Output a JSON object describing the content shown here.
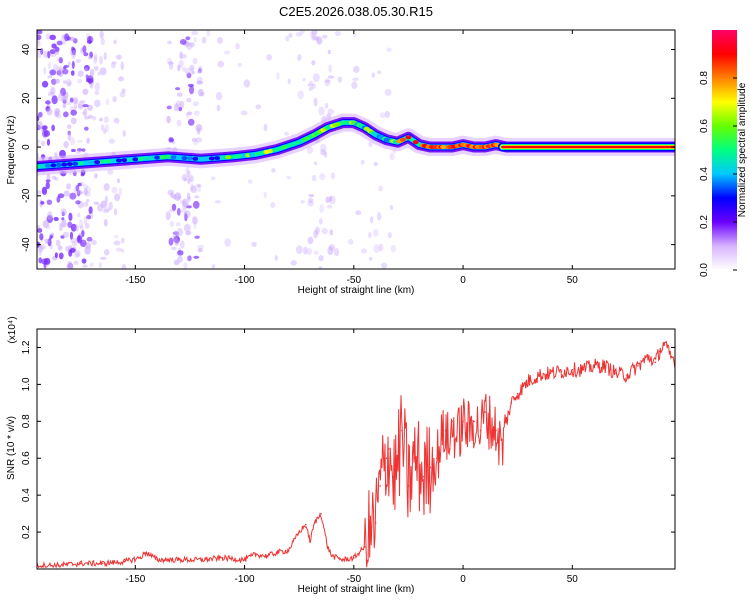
{
  "figure_title": "C2E5.2026.038.05.30.R15",
  "chart_data": [
    {
      "type": "heatmap",
      "title": "C2E5.2026.038.05.30.R15",
      "xlabel": "Height of straight line (km)",
      "ylabel": "Frequency (Hz)",
      "xlim": [
        -195,
        97
      ],
      "ylim": [
        -50,
        48
      ],
      "xticks": [
        -150,
        -100,
        -50,
        0,
        50
      ],
      "xtick_labels": [
        "-150",
        "-100",
        "-50",
        "0",
        "50"
      ],
      "yticks": [
        -40,
        -20,
        0,
        20,
        40
      ],
      "ytick_labels": [
        "-40",
        "-20",
        "0",
        "20",
        "40"
      ],
      "colorbar": {
        "label": "Normalized spectral amplitude",
        "range": [
          0,
          1
        ],
        "ticks": [
          0,
          0.2,
          0.4,
          0.6,
          0.8
        ],
        "tick_labels": [
          "0.0",
          "0.2",
          "0.4",
          "0.6",
          "0.8"
        ],
        "colormap": [
          "#ffffff",
          "#d8b4ff",
          "#6a00ff",
          "#0000ff",
          "#00c8ff",
          "#00ff80",
          "#66ff00",
          "#ffff00",
          "#ff8000",
          "#ff0000",
          "#ff0066"
        ]
      },
      "ridge_frequency_hz": {
        "x": [
          -195,
          -180,
          -165,
          -150,
          -135,
          -120,
          -105,
          -95,
          -85,
          -75,
          -68,
          -62,
          -55,
          -50,
          -45,
          -40,
          -35,
          -30,
          -25,
          -20,
          -15,
          -10,
          -5,
          0,
          5,
          10,
          15,
          20,
          40,
          60,
          80,
          97
        ],
        "y": [
          -8,
          -7,
          -6,
          -5,
          -4,
          -5,
          -4,
          -3,
          -1,
          2,
          5,
          8,
          10,
          10,
          8,
          5,
          3,
          2,
          4,
          1,
          0,
          0,
          0,
          1,
          0,
          0,
          1,
          0,
          0,
          0,
          0,
          0
        ]
      }
    },
    {
      "type": "line",
      "xlabel": "Height of straight line (km)",
      "ylabel": "SNR (10 * v/v)",
      "y_scale_label": "(x10⁴)",
      "xlim": [
        -195,
        97
      ],
      "ylim": [
        0,
        1.3
      ],
      "xticks": [
        -150,
        -100,
        -50,
        0,
        50
      ],
      "xtick_labels": [
        "-150",
        "-100",
        "-50",
        "0",
        "50"
      ],
      "yticks": [
        0.2,
        0.4,
        0.6,
        0.8,
        1.0,
        1.2
      ],
      "ytick_labels": [
        "0.2",
        "0.4",
        "0.6",
        "0.8",
        "1.0",
        "1.2"
      ],
      "series": [
        {
          "name": "SNR",
          "color": "#ee3333",
          "x": [
            -195,
            -185,
            -175,
            -165,
            -155,
            -148,
            -145,
            -140,
            -130,
            -120,
            -110,
            -100,
            -95,
            -90,
            -85,
            -80,
            -75,
            -72,
            -70,
            -68,
            -65,
            -62,
            -60,
            -55,
            -50,
            -45,
            -42,
            -40,
            -38,
            -36,
            -35,
            -34,
            -32,
            -30,
            -28,
            -25,
            -22,
            -20,
            -18,
            -15,
            -12,
            -10,
            -8,
            -6,
            -5,
            -3,
            0,
            3,
            5,
            8,
            10,
            12,
            15,
            18,
            20,
            22,
            25,
            30,
            35,
            40,
            45,
            50,
            55,
            60,
            65,
            70,
            75,
            80,
            85,
            88,
            90,
            92,
            95,
            97
          ],
          "values": [
            0.02,
            0.02,
            0.03,
            0.03,
            0.04,
            0.06,
            0.09,
            0.05,
            0.05,
            0.05,
            0.06,
            0.05,
            0.08,
            0.07,
            0.09,
            0.1,
            0.2,
            0.24,
            0.15,
            0.25,
            0.3,
            0.12,
            0.07,
            0.05,
            0.06,
            0.12,
            0.2,
            0.25,
            0.45,
            0.55,
            0.6,
            0.65,
            0.5,
            0.55,
            0.75,
            0.45,
            0.6,
            0.55,
            0.5,
            0.55,
            0.6,
            0.7,
            0.75,
            0.65,
            0.8,
            0.7,
            0.8,
            0.75,
            0.8,
            0.75,
            0.85,
            0.8,
            0.75,
            0.65,
            0.8,
            0.9,
            0.95,
            1.02,
            1.05,
            1.06,
            1.07,
            1.08,
            1.08,
            1.1,
            1.1,
            1.06,
            1.05,
            1.1,
            1.15,
            1.12,
            1.18,
            1.22,
            1.15,
            1.13
          ]
        }
      ]
    }
  ]
}
